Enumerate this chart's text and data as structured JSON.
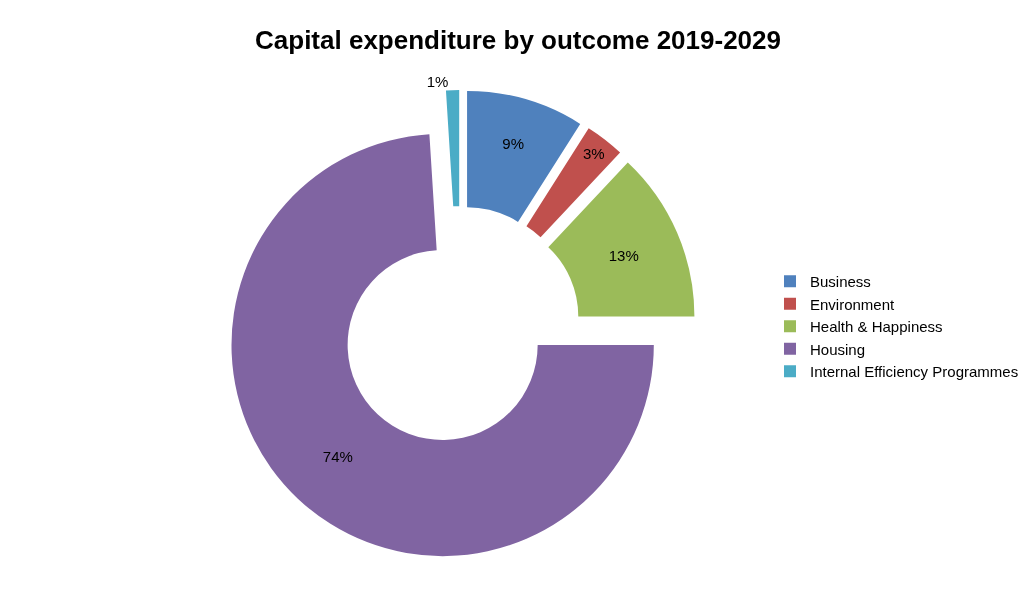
{
  "chart_data": {
    "type": "donut",
    "title": "Capital expenditure by outcome 2019-2029",
    "categories": [
      "Business",
      "Environment",
      "Health & Happiness",
      "Housing",
      "Internal Efficiency Programmes"
    ],
    "values": [
      9,
      3,
      13,
      74,
      1
    ],
    "colors": [
      "#4f81bd",
      "#c0504d",
      "#9bbb59",
      "#8064a2",
      "#4bacc6"
    ],
    "value_labels": [
      "9%",
      "3%",
      "13%",
      "74%",
      "1%"
    ],
    "legend": "right"
  }
}
